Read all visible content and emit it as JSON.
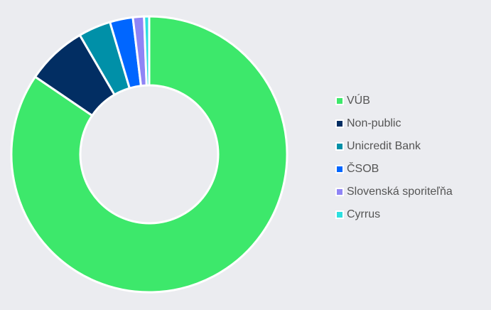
{
  "chart_data": {
    "type": "pie",
    "donut": true,
    "title": "",
    "legend_position": "right",
    "categories": [
      "VÚB",
      "Non-public",
      "Unicredit Bank",
      "ČSOB",
      "Slovenská sporiteľňa",
      "Cyrrus"
    ],
    "values": [
      84.5,
      7.1,
      3.8,
      2.7,
      1.3,
      0.6
    ],
    "colors": [
      "#3de86b",
      "#022e63",
      "#0090a8",
      "#0066ff",
      "#8f84f5",
      "#2de0e0"
    ]
  }
}
